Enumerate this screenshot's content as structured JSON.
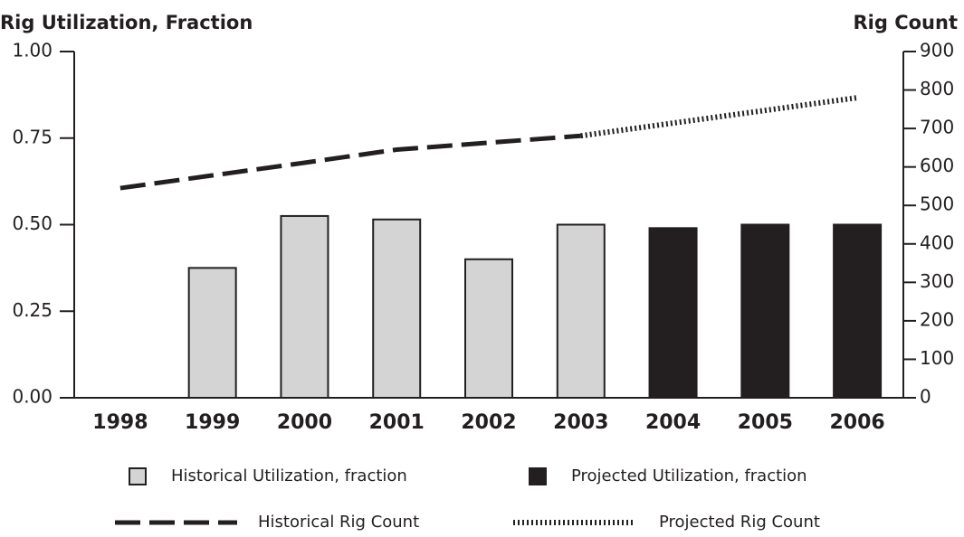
{
  "chart_data": {
    "type": "combo",
    "y_label": "Rig Utilization, Fraction",
    "y2_label": "Rig Count",
    "categories": [
      "1998",
      "1999",
      "2000",
      "2001",
      "2002",
      "2003",
      "2004",
      "2005",
      "2006"
    ],
    "series": [
      {
        "name": "Historical Utilization, fraction",
        "type": "bar",
        "axis": "y",
        "color": "#d4d4d4",
        "values": [
          null,
          0.375,
          0.525,
          0.515,
          0.4,
          0.5,
          null,
          null,
          null
        ]
      },
      {
        "name": "Projected Utilization, fraction",
        "type": "bar",
        "axis": "y",
        "color": "#231f20",
        "values": [
          null,
          null,
          null,
          null,
          null,
          null,
          0.49,
          0.5,
          0.5
        ]
      },
      {
        "name": "Historical Rig Count",
        "type": "line",
        "axis": "y2",
        "color": "#231f20",
        "dash": "dashed",
        "values": [
          545,
          578,
          611,
          645,
          663,
          681,
          null,
          null,
          null
        ]
      },
      {
        "name": "Projected Rig Count",
        "type": "line",
        "axis": "y2",
        "color": "#231f20",
        "dash": "dotted",
        "values": [
          null,
          null,
          null,
          null,
          null,
          681,
          714,
          747,
          780
        ]
      }
    ],
    "ylim": [
      0,
      1
    ],
    "yticks": [
      {
        "value": 0,
        "label": "0.00"
      },
      {
        "value": 0.25,
        "label": "0.25"
      },
      {
        "value": 0.5,
        "label": "0.50"
      },
      {
        "value": 0.75,
        "label": "0.75"
      },
      {
        "value": 1,
        "label": "1.00"
      }
    ],
    "y2lim": [
      0,
      900
    ],
    "y2ticks": [
      0,
      100,
      200,
      300,
      400,
      500,
      600,
      700,
      800,
      900
    ]
  }
}
